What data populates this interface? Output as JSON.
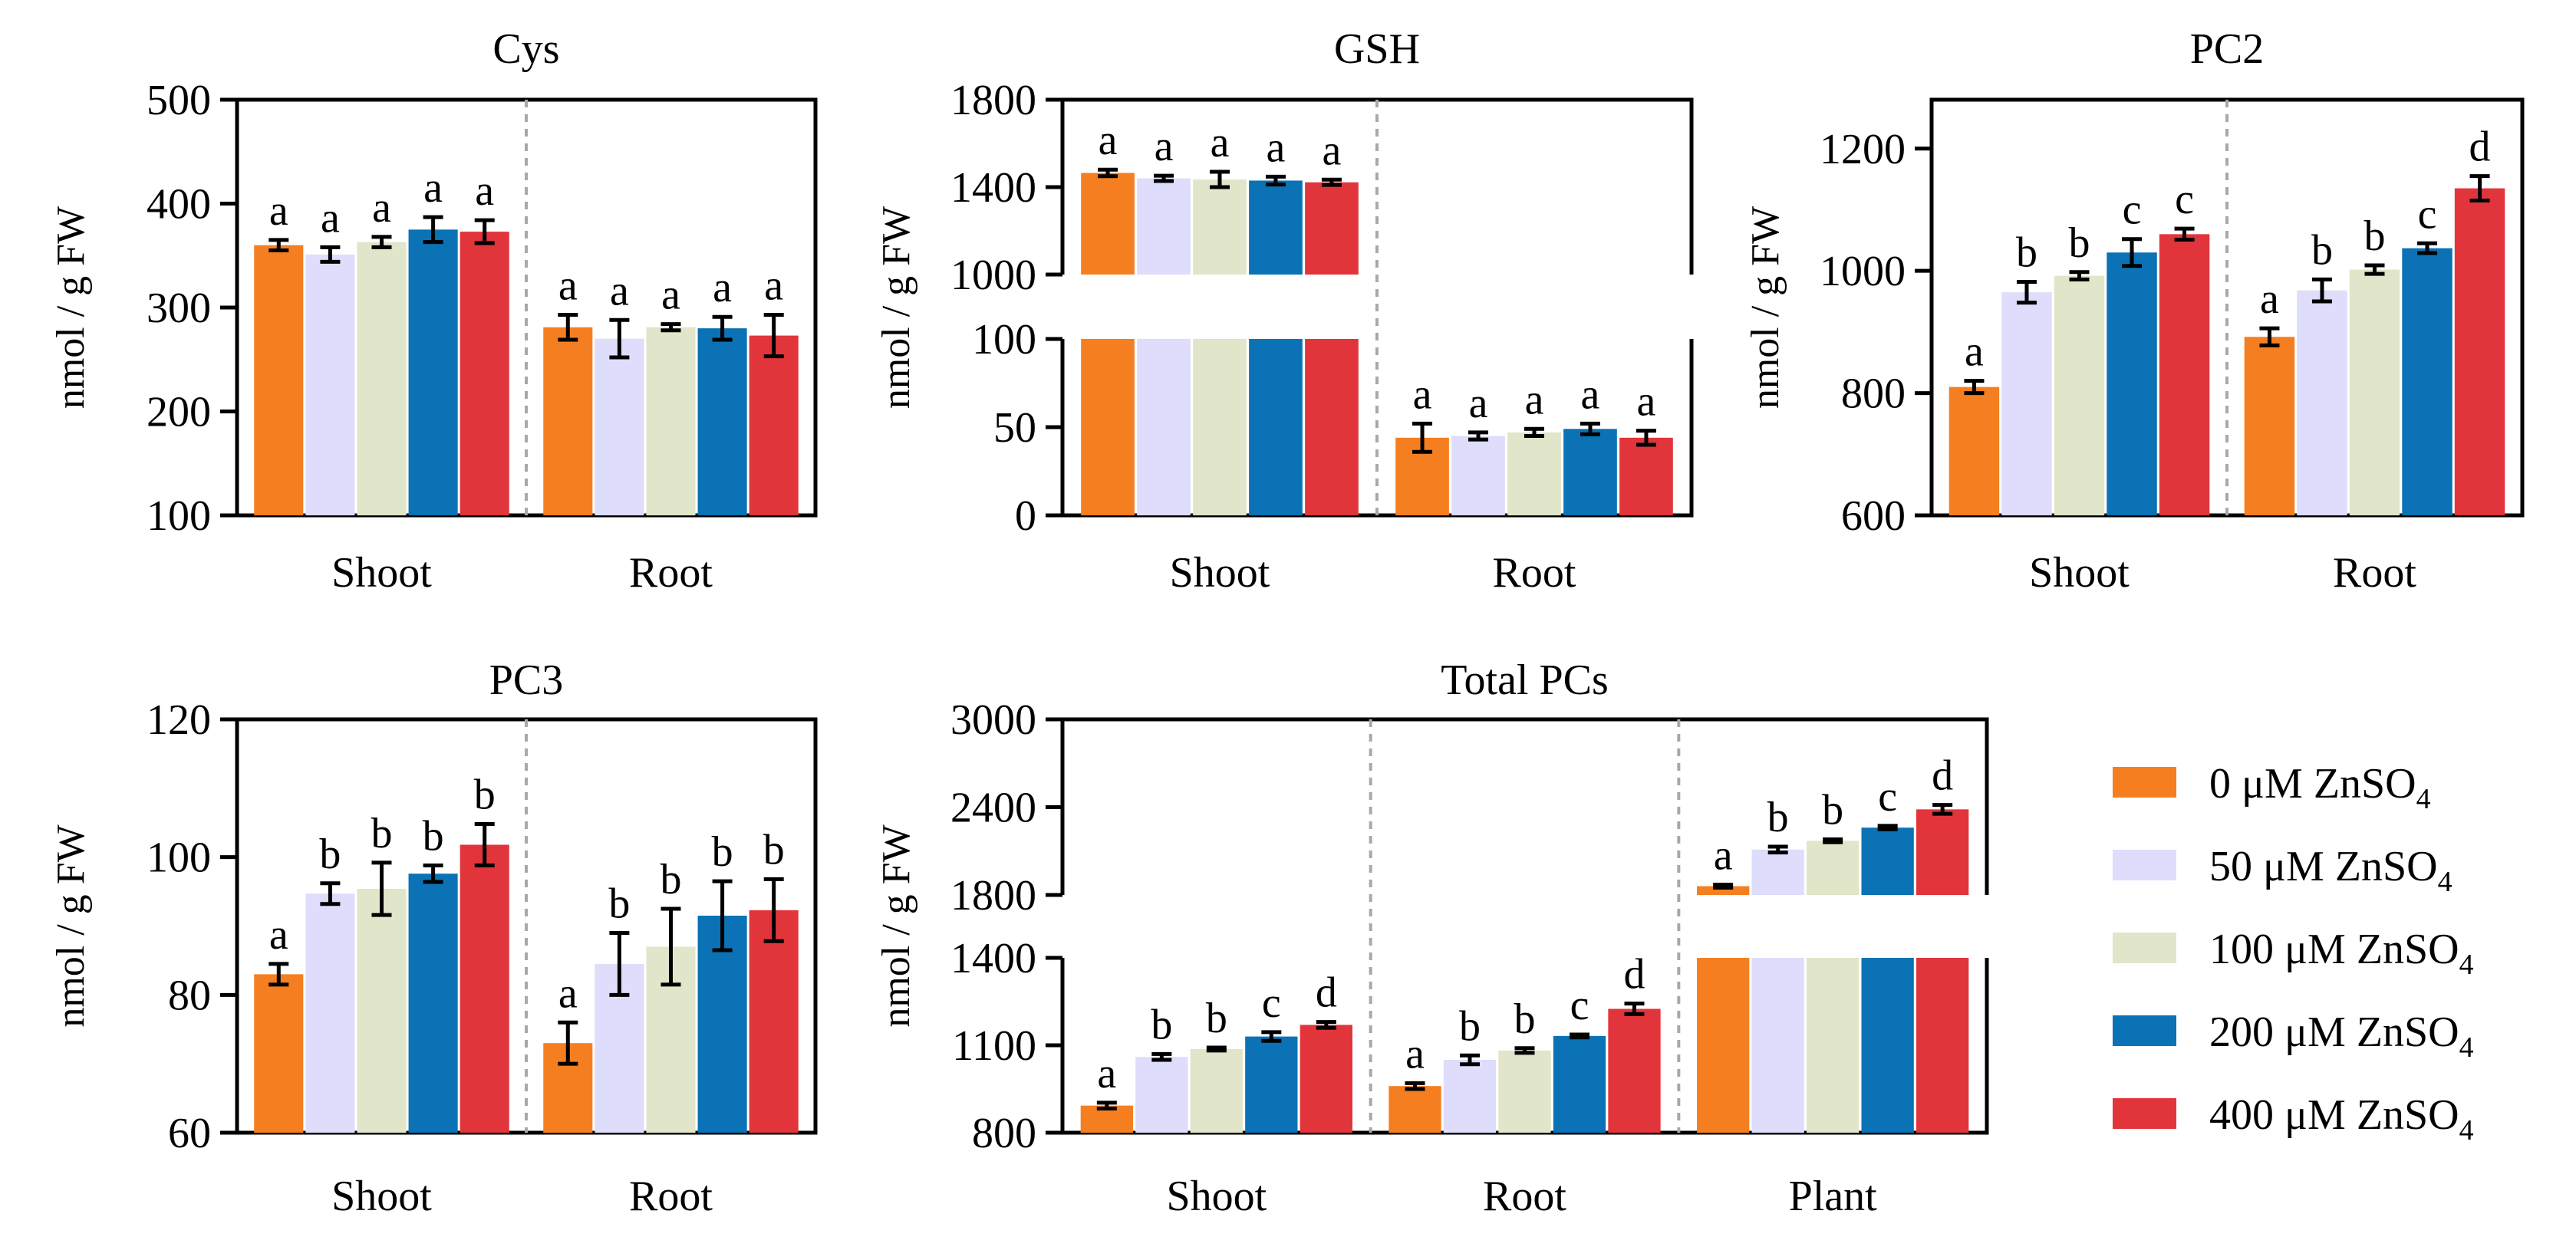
{
  "colors": {
    "c0": "#F57F20",
    "c50": "#DEDDFB",
    "c100": "#E1E5C9",
    "c200": "#0A72B5",
    "c400": "#E1353B",
    "axis": "#000000",
    "divider": "#A8A8A8"
  },
  "legend": {
    "items": [
      {
        "label": "0 μM ZnSO",
        "sub": "4",
        "color_key": "c0"
      },
      {
        "label": "50 μM ZnSO",
        "sub": "4",
        "color_key": "c50"
      },
      {
        "label": "100 μM ZnSO",
        "sub": "4",
        "color_key": "c100"
      },
      {
        "label": "200 μM ZnSO",
        "sub": "4",
        "color_key": "c200"
      },
      {
        "label": "400 μM ZnSO",
        "sub": "4",
        "color_key": "c400"
      }
    ]
  },
  "chart_data": [
    {
      "id": "cys",
      "type": "bar",
      "title": "Cys",
      "ylabel": "nmol / g FW",
      "categories": [
        "Shoot",
        "Root"
      ],
      "ylim": [
        100,
        500
      ],
      "yticks": [
        100,
        200,
        300,
        400,
        500
      ],
      "series": [
        {
          "name": "0 μM ZnSO4",
          "values": [
            360,
            281
          ],
          "errors": [
            5,
            12
          ],
          "letters": [
            "a",
            "a"
          ]
        },
        {
          "name": "50 μM ZnSO4",
          "values": [
            351,
            270
          ],
          "errors": [
            7,
            18
          ],
          "letters": [
            "a",
            "a"
          ]
        },
        {
          "name": "100 μM ZnSO4",
          "values": [
            363,
            281
          ],
          "errors": [
            5,
            3
          ],
          "letters": [
            "a",
            "a"
          ]
        },
        {
          "name": "200 μM ZnSO4",
          "values": [
            375,
            280
          ],
          "errors": [
            12,
            11
          ],
          "letters": [
            "a",
            "a"
          ]
        },
        {
          "name": "400 μM ZnSO4",
          "values": [
            373,
            273
          ],
          "errors": [
            11,
            20
          ],
          "letters": [
            "a",
            "a"
          ]
        }
      ]
    },
    {
      "id": "gsh",
      "type": "bar",
      "title": "GSH",
      "ylabel": "nmol / g FW",
      "categories": [
        "Shoot",
        "Root"
      ],
      "axis_break": {
        "lower": [
          0,
          100
        ],
        "upper": [
          1000,
          1800
        ]
      },
      "yticks": [
        0,
        50,
        100,
        1000,
        1400,
        1800
      ],
      "series": [
        {
          "name": "0 μM ZnSO4",
          "values": [
            1465,
            44
          ],
          "errors": [
            15,
            8
          ],
          "letters": [
            "a",
            "a"
          ]
        },
        {
          "name": "50 μM ZnSO4",
          "values": [
            1440,
            45
          ],
          "errors": [
            12,
            2
          ],
          "letters": [
            "a",
            "a"
          ]
        },
        {
          "name": "100 μM ZnSO4",
          "values": [
            1435,
            47
          ],
          "errors": [
            35,
            2
          ],
          "letters": [
            "a",
            "a"
          ]
        },
        {
          "name": "200 μM ZnSO4",
          "values": [
            1430,
            49
          ],
          "errors": [
            18,
            3
          ],
          "letters": [
            "a",
            "a"
          ]
        },
        {
          "name": "400 μM ZnSO4",
          "values": [
            1422,
            44
          ],
          "errors": [
            12,
            4
          ],
          "letters": [
            "a",
            "a"
          ]
        }
      ]
    },
    {
      "id": "pc2",
      "type": "bar",
      "title": "PC2",
      "ylabel": "nmol / g FW",
      "categories": [
        "Shoot",
        "Root"
      ],
      "ylim": [
        600,
        1280
      ],
      "yticks": [
        600,
        800,
        1000,
        1200
      ],
      "series": [
        {
          "name": "0 μM ZnSO4",
          "values": [
            810,
            892
          ],
          "errors": [
            10,
            14
          ],
          "letters": [
            "a",
            "a"
          ]
        },
        {
          "name": "50 μM ZnSO4",
          "values": [
            965,
            968
          ],
          "errors": [
            17,
            18
          ],
          "letters": [
            "b",
            "b"
          ]
        },
        {
          "name": "100 μM ZnSO4",
          "values": [
            992,
            1002
          ],
          "errors": [
            6,
            7
          ],
          "letters": [
            "b",
            "b"
          ]
        },
        {
          "name": "200 μM ZnSO4",
          "values": [
            1030,
            1037
          ],
          "errors": [
            22,
            8
          ],
          "letters": [
            "c",
            "c"
          ]
        },
        {
          "name": "400 μM ZnSO4",
          "values": [
            1060,
            1135
          ],
          "errors": [
            9,
            20
          ],
          "letters": [
            "c",
            "d"
          ]
        }
      ]
    },
    {
      "id": "pc3",
      "type": "bar",
      "title": "PC3",
      "ylabel": "nmol / g FW",
      "categories": [
        "Shoot",
        "Root"
      ],
      "ylim": [
        60,
        120
      ],
      "yticks": [
        60,
        80,
        100,
        120
      ],
      "series": [
        {
          "name": "0 μM ZnSO4",
          "values": [
            83,
            73
          ],
          "errors": [
            1.5,
            3
          ],
          "letters": [
            "a",
            "a"
          ]
        },
        {
          "name": "50 μM ZnSO4",
          "values": [
            94.7,
            84.5
          ],
          "errors": [
            1.5,
            4.5
          ],
          "letters": [
            "b",
            "b"
          ]
        },
        {
          "name": "100 μM ZnSO4",
          "values": [
            95.4,
            87
          ],
          "errors": [
            3.8,
            5.5
          ],
          "letters": [
            "b",
            "b"
          ]
        },
        {
          "name": "200 μM ZnSO4",
          "values": [
            97.6,
            91.5
          ],
          "errors": [
            1.2,
            5
          ],
          "letters": [
            "b",
            "b"
          ]
        },
        {
          "name": "400 μM ZnSO4",
          "values": [
            101.8,
            92.3
          ],
          "errors": [
            3,
            4.5
          ],
          "letters": [
            "b",
            "b"
          ]
        }
      ]
    },
    {
      "id": "totalpcs",
      "type": "bar",
      "title": "Total PCs",
      "ylabel": "nmol / g FW",
      "categories": [
        "Shoot",
        "Root",
        "Plant"
      ],
      "axis_break": {
        "lower": [
          800,
          1400
        ],
        "upper": [
          1800,
          3000
        ]
      },
      "yticks": [
        800,
        1100,
        1400,
        1800,
        2400,
        3000
      ],
      "series": [
        {
          "name": "0 μM ZnSO4",
          "values": [
            893,
            960,
            1860
          ],
          "errors": [
            10,
            10,
            10
          ],
          "letters": [
            "a",
            "a",
            "a"
          ]
        },
        {
          "name": "50 μM ZnSO4",
          "values": [
            1060,
            1050,
            2110
          ],
          "errors": [
            10,
            15,
            20
          ],
          "letters": [
            "b",
            "b",
            "b"
          ]
        },
        {
          "name": "100 μM ZnSO4",
          "values": [
            1087,
            1082,
            2170
          ],
          "errors": [
            5,
            8,
            10
          ],
          "letters": [
            "b",
            "b",
            "b"
          ]
        },
        {
          "name": "200 μM ZnSO4",
          "values": [
            1130,
            1132,
            2260
          ],
          "errors": [
            15,
            5,
            12
          ],
          "letters": [
            "c",
            "c",
            "c"
          ]
        },
        {
          "name": "400 μM ZnSO4",
          "values": [
            1170,
            1225,
            2385
          ],
          "errors": [
            10,
            18,
            30
          ],
          "letters": [
            "d",
            "d",
            "d"
          ]
        }
      ]
    }
  ]
}
